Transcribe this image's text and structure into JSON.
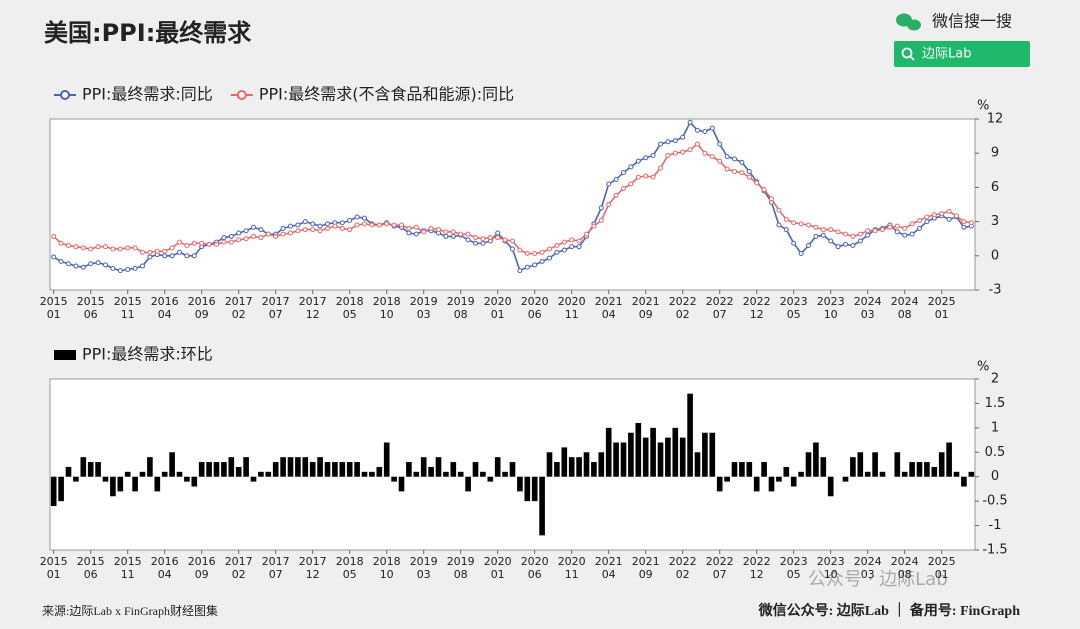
{
  "header": {
    "title": "美国:PPI:最终需求",
    "wechat_search": "微信搜一搜",
    "search_button": "边际Lab"
  },
  "footer": {
    "source": "来源:边际Lab x FinGraph财经图集",
    "account": "微信公众号: 边际Lab ｜ 备用号: FinGraph"
  },
  "watermark": "公众号 · 边际Lab",
  "chart_data": [
    {
      "type": "line",
      "unit": "%",
      "ylim": [
        -3,
        12
      ],
      "yticks": [
        -3,
        0,
        3,
        6,
        9,
        12
      ],
      "categories": [
        [
          "2015",
          "01"
        ],
        null,
        null,
        null,
        null,
        [
          "2015",
          "06"
        ],
        null,
        null,
        null,
        null,
        [
          "2015",
          "11"
        ],
        null,
        null,
        null,
        null,
        [
          "2016",
          "04"
        ],
        null,
        null,
        null,
        null,
        [
          "2016",
          "09"
        ],
        null,
        null,
        null,
        null,
        [
          "2017",
          "02"
        ],
        null,
        null,
        null,
        null,
        [
          "2017",
          "07"
        ],
        null,
        null,
        null,
        null,
        [
          "2017",
          "12"
        ],
        null,
        null,
        null,
        null,
        [
          "2018",
          "05"
        ],
        null,
        null,
        null,
        null,
        [
          "2018",
          "10"
        ],
        null,
        null,
        null,
        null,
        [
          "2019",
          "03"
        ],
        null,
        null,
        null,
        null,
        [
          "2019",
          "08"
        ],
        null,
        null,
        null,
        null,
        [
          "2020",
          "01"
        ],
        null,
        null,
        null,
        null,
        [
          "2020",
          "06"
        ],
        null,
        null,
        null,
        null,
        [
          "2020",
          "11"
        ],
        null,
        null,
        null,
        null,
        [
          "2021",
          "04"
        ],
        null,
        null,
        null,
        null,
        [
          "2021",
          "09"
        ],
        null,
        null,
        null,
        null,
        [
          "2022",
          "02"
        ],
        null,
        null,
        null,
        null,
        [
          "2022",
          "07"
        ],
        null,
        null,
        null,
        null,
        [
          "2022",
          "12"
        ],
        null,
        null,
        null,
        null,
        [
          "2023",
          "05"
        ],
        null,
        null,
        null,
        null,
        [
          "2023",
          "10"
        ],
        null,
        null,
        null,
        null,
        [
          "2024",
          "03"
        ],
        null,
        null,
        null,
        null,
        [
          "2024",
          "08"
        ],
        null,
        null,
        null,
        null,
        [
          "2025",
          "01"
        ],
        null,
        null,
        null,
        null
      ],
      "series": [
        {
          "name": "PPI:最终需求:同比",
          "color": "#4a64b8",
          "values": [
            -0.1,
            -0.5,
            -0.7,
            -0.9,
            -1.0,
            -0.7,
            -0.6,
            -0.8,
            -1.1,
            -1.3,
            -1.2,
            -1.1,
            -0.9,
            -0.1,
            0.1,
            0.0,
            0.0,
            0.3,
            0.0,
            0.0,
            0.8,
            1.0,
            1.2,
            1.6,
            1.7,
            2.0,
            2.2,
            2.5,
            2.3,
            1.9,
            1.9,
            2.4,
            2.6,
            2.7,
            3.0,
            2.8,
            2.6,
            2.8,
            2.9,
            2.9,
            3.1,
            3.4,
            3.3,
            2.8,
            2.7,
            2.9,
            2.6,
            2.5,
            2.0,
            1.9,
            2.2,
            2.2,
            2.0,
            1.7,
            1.7,
            1.8,
            1.4,
            1.1,
            1.1,
            1.3,
            2.0,
            1.3,
            0.6,
            -1.3,
            -1.0,
            -0.8,
            -0.5,
            -0.2,
            0.3,
            0.5,
            0.8,
            0.8,
            1.7,
            2.8,
            4.2,
            6.3,
            6.7,
            7.3,
            7.8,
            8.3,
            8.6,
            8.8,
            9.8,
            10.0,
            10.1,
            10.4,
            11.7,
            11.0,
            10.9,
            11.2,
            9.8,
            8.7,
            8.5,
            8.2,
            7.4,
            6.5,
            5.7,
            4.7,
            2.7,
            2.3,
            1.1,
            0.2,
            0.9,
            1.7,
            1.8,
            1.3,
            0.8,
            1.0,
            0.9,
            1.3,
            1.8,
            2.3,
            2.4,
            2.7,
            2.1,
            1.8,
            1.9,
            2.4,
            3.0,
            3.3,
            3.5,
            3.2,
            3.4,
            2.5,
            2.6
          ]
        },
        {
          "name": "PPI:最终需求(不含食品和能源):同比",
          "color": "#e86868",
          "values": [
            1.7,
            1.1,
            0.9,
            0.8,
            0.7,
            0.6,
            0.8,
            0.8,
            0.6,
            0.6,
            0.7,
            0.7,
            0.3,
            0.3,
            0.4,
            0.4,
            0.7,
            1.2,
            0.9,
            1.1,
            1.1,
            1.0,
            1.0,
            1.2,
            1.2,
            1.4,
            1.5,
            1.7,
            1.6,
            1.9,
            1.7,
            1.9,
            2.0,
            2.2,
            2.3,
            2.3,
            2.2,
            2.4,
            2.6,
            2.4,
            2.3,
            2.7,
            2.8,
            2.7,
            2.7,
            2.8,
            2.7,
            2.7,
            2.4,
            2.5,
            2.1,
            2.4,
            2.3,
            2.1,
            2.1,
            1.9,
            1.9,
            1.6,
            1.5,
            1.6,
            1.6,
            1.4,
            1.3,
            0.5,
            0.2,
            0.2,
            0.3,
            0.6,
            0.9,
            1.2,
            1.4,
            1.3,
            1.9,
            2.6,
            3.1,
            4.5,
            5.3,
            5.9,
            6.3,
            6.9,
            7.0,
            6.9,
            7.7,
            8.8,
            9.0,
            9.1,
            9.3,
            9.8,
            9.0,
            8.7,
            8.3,
            7.6,
            7.4,
            7.3,
            6.9,
            6.4,
            5.8,
            5.0,
            4.0,
            3.2,
            2.9,
            2.8,
            2.7,
            2.5,
            2.3,
            2.3,
            2.1,
            1.9,
            1.7,
            1.9,
            2.2,
            2.2,
            2.3,
            2.5,
            2.6,
            2.4,
            2.8,
            3.1,
            3.4,
            3.6,
            3.7,
            3.9,
            3.5,
            3.0,
            2.9
          ]
        }
      ]
    },
    {
      "type": "bar",
      "unit": "%",
      "ylim": [
        -1.5,
        2
      ],
      "yticks": [
        -1.5,
        -1,
        -0.5,
        0,
        0.5,
        1,
        1.5,
        2
      ],
      "categories": [
        [
          "2015",
          "01"
        ],
        null,
        null,
        null,
        null,
        [
          "2015",
          "06"
        ],
        null,
        null,
        null,
        null,
        [
          "2015",
          "11"
        ],
        null,
        null,
        null,
        null,
        [
          "2016",
          "04"
        ],
        null,
        null,
        null,
        null,
        [
          "2016",
          "09"
        ],
        null,
        null,
        null,
        null,
        [
          "2017",
          "02"
        ],
        null,
        null,
        null,
        null,
        [
          "2017",
          "07"
        ],
        null,
        null,
        null,
        null,
        [
          "2017",
          "12"
        ],
        null,
        null,
        null,
        null,
        [
          "2018",
          "05"
        ],
        null,
        null,
        null,
        null,
        [
          "2018",
          "10"
        ],
        null,
        null,
        null,
        null,
        [
          "2019",
          "03"
        ],
        null,
        null,
        null,
        null,
        [
          "2019",
          "08"
        ],
        null,
        null,
        null,
        null,
        [
          "2020",
          "01"
        ],
        null,
        null,
        null,
        null,
        [
          "2020",
          "06"
        ],
        null,
        null,
        null,
        null,
        [
          "2020",
          "11"
        ],
        null,
        null,
        null,
        null,
        [
          "2021",
          "04"
        ],
        null,
        null,
        null,
        null,
        [
          "2021",
          "09"
        ],
        null,
        null,
        null,
        null,
        [
          "2022",
          "02"
        ],
        null,
        null,
        null,
        null,
        [
          "2022",
          "07"
        ],
        null,
        null,
        null,
        null,
        [
          "2022",
          "12"
        ],
        null,
        null,
        null,
        null,
        [
          "2023",
          "05"
        ],
        null,
        null,
        null,
        null,
        [
          "2023",
          "10"
        ],
        null,
        null,
        null,
        null,
        [
          "2024",
          "03"
        ],
        null,
        null,
        null,
        null,
        [
          "2024",
          "08"
        ],
        null,
        null,
        null,
        null,
        [
          "2025",
          "01"
        ],
        null,
        null,
        null,
        null
      ],
      "series": [
        {
          "name": "PPI:最终需求:环比",
          "color": "#000000",
          "values": [
            -0.6,
            -0.5,
            0.2,
            -0.1,
            0.4,
            0.3,
            0.3,
            -0.1,
            -0.4,
            -0.3,
            0.1,
            -0.3,
            0.1,
            0.4,
            -0.3,
            0.1,
            0.5,
            0.1,
            -0.1,
            -0.2,
            0.3,
            0.3,
            0.3,
            0.3,
            0.4,
            0.2,
            0.4,
            -0.1,
            0.1,
            0.1,
            0.3,
            0.4,
            0.4,
            0.4,
            0.4,
            0.3,
            0.4,
            0.3,
            0.3,
            0.3,
            0.3,
            0.3,
            0.1,
            0.1,
            0.2,
            0.7,
            -0.1,
            -0.3,
            0.3,
            0.1,
            0.4,
            0.2,
            0.4,
            0.1,
            0.3,
            0.1,
            -0.3,
            0.3,
            0.1,
            -0.1,
            0.4,
            0.1,
            0.3,
            -0.3,
            -0.5,
            -0.5,
            -1.2,
            0.5,
            0.3,
            0.6,
            0.4,
            0.4,
            0.5,
            0.3,
            0.5,
            1.0,
            0.7,
            0.7,
            0.9,
            1.1,
            0.8,
            1.0,
            0.7,
            0.8,
            1.0,
            0.8,
            1.7,
            0.5,
            0.9,
            0.9,
            -0.3,
            -0.1,
            0.3,
            0.3,
            0.3,
            -0.3,
            0.3,
            -0.3,
            -0.1,
            0.2,
            -0.2,
            0.1,
            0.5,
            0.7,
            0.4,
            -0.4,
            0.0,
            -0.1,
            0.4,
            0.5,
            0.1,
            0.5,
            0.1,
            0.0,
            0.5,
            0.1,
            0.3,
            0.3,
            0.3,
            0.2,
            0.5,
            0.7,
            0.1,
            -0.2,
            0.1
          ]
        }
      ]
    }
  ]
}
